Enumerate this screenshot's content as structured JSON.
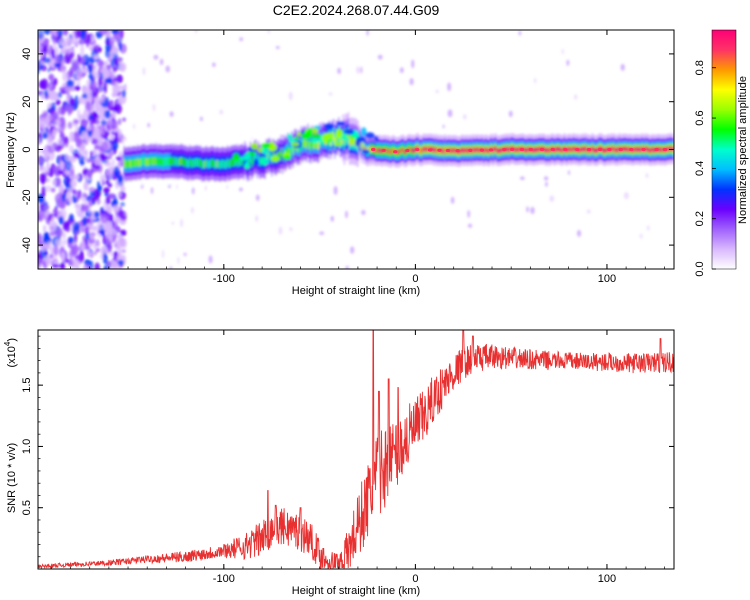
{
  "title": "C2E2.2024.268.07.44.G09",
  "chart_data": [
    {
      "type": "heatmap",
      "xlabel": "Height of straight line (km)",
      "ylabel": "Frequency (Hz)",
      "xlim": [
        -197,
        135
      ],
      "ylim": [
        -50,
        50
      ],
      "x_ticks": [
        -100,
        0,
        100
      ],
      "x_tick_labels": [
        "-100",
        "0",
        "100"
      ],
      "y_ticks": [
        -40,
        -20,
        0,
        20,
        40
      ],
      "y_tick_labels": [
        "-40",
        "-20",
        "0",
        "20",
        "40"
      ],
      "colorbar": {
        "label": "Normalized spectral amplitude",
        "range": [
          0,
          0.95
        ],
        "ticks": [
          0,
          0.2,
          0.4,
          0.6,
          0.8
        ],
        "tick_labels": [
          "0.0",
          "0.2",
          "0.4",
          "0.6",
          "0.8"
        ],
        "colors": [
          "#ffffff",
          "#d9b8ff",
          "#a060ff",
          "#6a00ff",
          "#0033ff",
          "#00bfff",
          "#00ffcc",
          "#00ff00",
          "#99ff00",
          "#ffff00",
          "#ff9900",
          "#ff3366",
          "#ff0077"
        ]
      },
      "noise_region_x": [
        -197,
        -152
      ],
      "track": [
        {
          "x": -152,
          "f": -6,
          "amp": 0.55
        },
        {
          "x": -140,
          "f": -5,
          "amp": 0.55
        },
        {
          "x": -125,
          "f": -5,
          "amp": 0.5
        },
        {
          "x": -110,
          "f": -6,
          "amp": 0.5
        },
        {
          "x": -100,
          "f": -6,
          "amp": 0.5
        },
        {
          "x": -90,
          "f": -5,
          "amp": 0.5
        },
        {
          "x": -80,
          "f": -4,
          "amp": 0.5
        },
        {
          "x": -70,
          "f": -2,
          "amp": 0.5
        },
        {
          "x": -60,
          "f": 2,
          "amp": 0.55
        },
        {
          "x": -50,
          "f": 3,
          "amp": 0.6
        },
        {
          "x": -40,
          "f": 5,
          "amp": 0.65
        },
        {
          "x": -32,
          "f": 4,
          "amp": 0.7
        },
        {
          "x": -25,
          "f": 0,
          "amp": 0.7
        },
        {
          "x": -20,
          "f": 0,
          "amp": 0.8
        },
        {
          "x": -10,
          "f": -1,
          "amp": 0.8
        },
        {
          "x": 0,
          "f": 0,
          "amp": 0.85
        },
        {
          "x": 20,
          "f": -0.5,
          "amp": 0.85
        },
        {
          "x": 50,
          "f": 0,
          "amp": 0.9
        },
        {
          "x": 80,
          "f": 0,
          "amp": 0.9
        },
        {
          "x": 110,
          "f": 0,
          "amp": 0.9
        },
        {
          "x": 135,
          "f": 0,
          "amp": 0.85
        }
      ]
    },
    {
      "type": "line",
      "xlabel": "Height of straight line (km)",
      "ylabel": "SNR (10 * v/v)",
      "y_multiplier_label": "(x10",
      "y_multiplier_exponent": "4",
      "xlim": [
        -197,
        135
      ],
      "ylim": [
        0,
        19500
      ],
      "x_ticks": [
        -100,
        0,
        100
      ],
      "x_tick_labels": [
        "-100",
        "0",
        "100"
      ],
      "y_ticks": [
        5000,
        10000,
        15000
      ],
      "y_tick_labels": [
        "0.5",
        "1.0",
        "1.5"
      ],
      "color": "#e83030",
      "trend": {
        "x": [
          -197,
          -180,
          -160,
          -140,
          -120,
          -100,
          -90,
          -80,
          -75,
          -70,
          -65,
          -60,
          -55,
          -50,
          -45,
          -40,
          -35,
          -30,
          -25,
          -20,
          -15,
          -10,
          -5,
          0,
          5,
          10,
          15,
          20,
          25,
          30,
          40,
          50,
          60,
          70,
          80,
          90,
          100,
          110,
          120,
          135
        ],
        "y": [
          200,
          350,
          500,
          800,
          1000,
          1500,
          1800,
          2500,
          3200,
          3500,
          3300,
          3000,
          2500,
          1200,
          500,
          500,
          1500,
          3500,
          5500,
          7500,
          8500,
          9500,
          10500,
          11500,
          12500,
          14000,
          15000,
          16000,
          16800,
          17200,
          17300,
          17200,
          17100,
          17000,
          17000,
          16900,
          16900,
          16800,
          16800,
          16900
        ]
      },
      "spikes": [
        {
          "x": -77,
          "y": 6400
        },
        {
          "x": -73,
          "y": 5200
        },
        {
          "x": -60,
          "y": 5000
        },
        {
          "x": -22,
          "y": 19500
        },
        {
          "x": -19,
          "y": 14500
        },
        {
          "x": -14,
          "y": 15500
        },
        {
          "x": -9,
          "y": 14800
        },
        {
          "x": 25,
          "y": 19500
        },
        {
          "x": 30,
          "y": 19000
        },
        {
          "x": 128,
          "y": 18800
        }
      ],
      "noise_amplitude": {
        "x": [
          -197,
          -150,
          -100,
          -80,
          -60,
          -40,
          -30,
          -20,
          -10,
          0,
          10,
          20,
          30,
          50,
          80,
          110,
          135
        ],
        "a": [
          150,
          250,
          600,
          1500,
          1600,
          900,
          2800,
          3500,
          3000,
          2500,
          2000,
          1500,
          1200,
          900,
          700,
          800,
          900
        ]
      }
    }
  ]
}
